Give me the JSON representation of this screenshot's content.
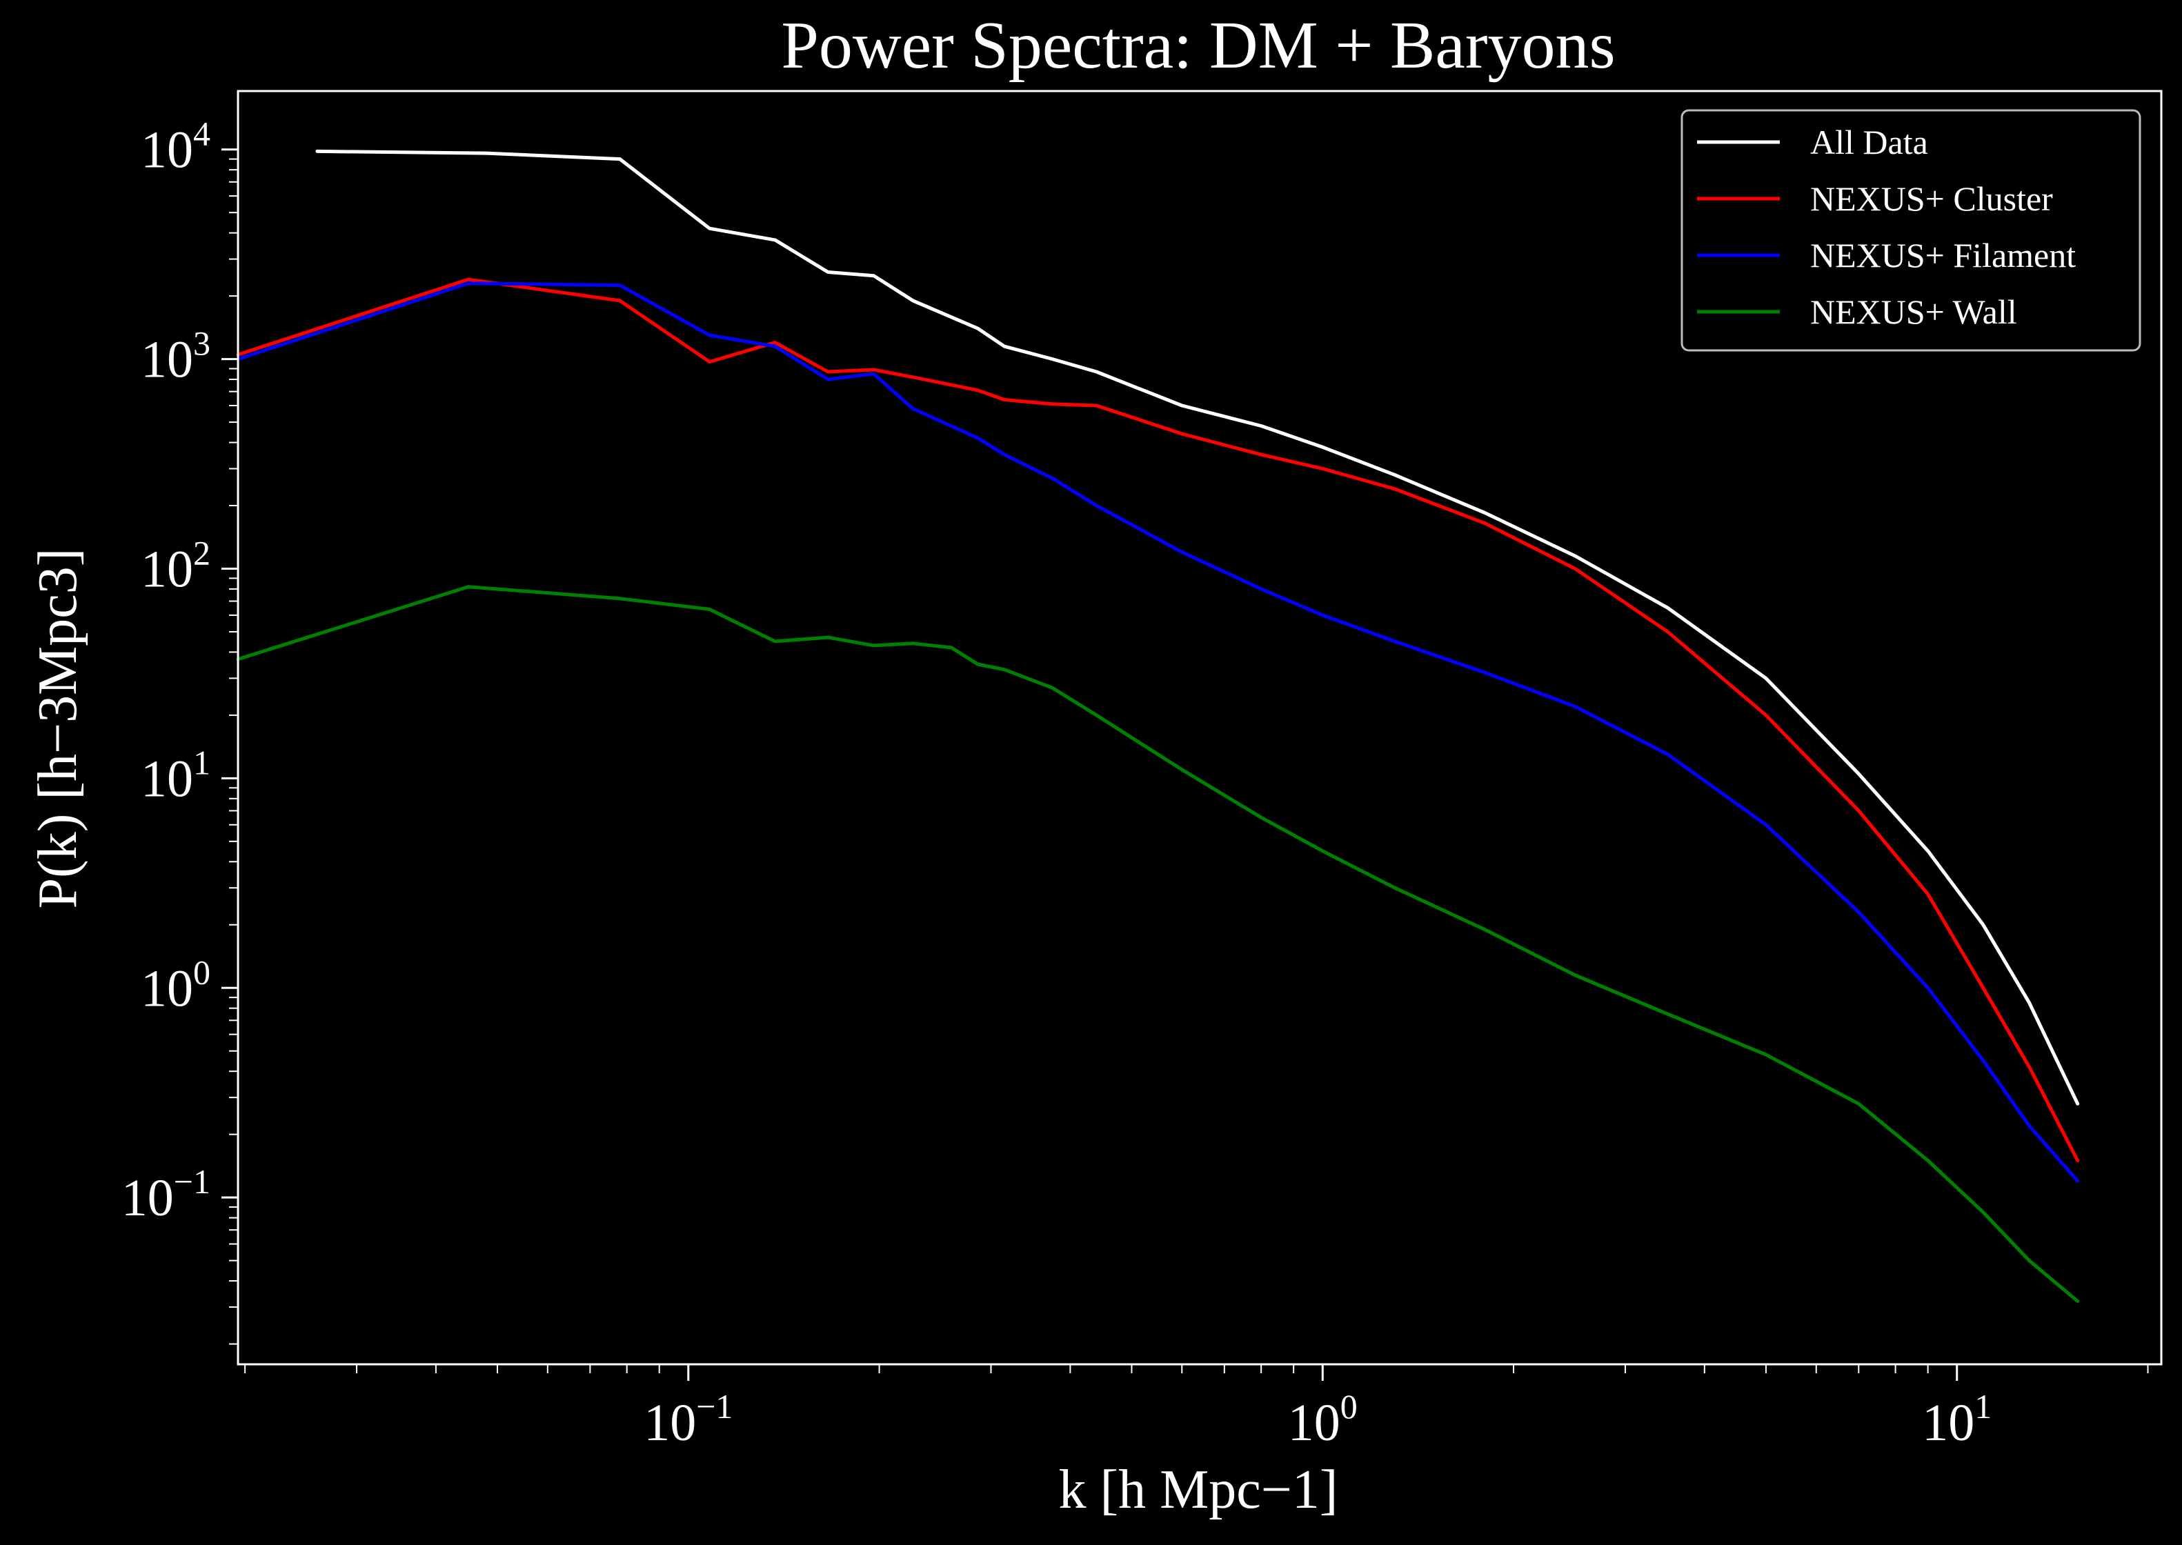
{
  "chart_data": {
    "type": "line",
    "title": "Power Spectra: DM + Baryons",
    "xlabel": "k [h Mpc−1]",
    "ylabel": "P(k) [h−3Mpc3]",
    "xscale": "log",
    "yscale": "log",
    "xlim": [
      0.0195,
      21
    ],
    "ylim": [
      0.016,
      19000
    ],
    "grid": false,
    "legend_position": "top-right",
    "x_ticks": [
      {
        "value": 0.1,
        "label": "10",
        "exp": "−1"
      },
      {
        "value": 1,
        "label": "10",
        "exp": "0"
      },
      {
        "value": 10,
        "label": "10",
        "exp": "1"
      }
    ],
    "y_ticks": [
      {
        "value": 0.1,
        "label": "10",
        "exp": "−1"
      },
      {
        "value": 1,
        "label": "10",
        "exp": "0"
      },
      {
        "value": 10,
        "label": "10",
        "exp": "1"
      },
      {
        "value": 100,
        "label": "10",
        "exp": "2"
      },
      {
        "value": 1000,
        "label": "10",
        "exp": "3"
      },
      {
        "value": 10000,
        "label": "10",
        "exp": "4"
      }
    ],
    "series": [
      {
        "name": "All Data",
        "color": "#ffffff",
        "x": [
          0.026,
          0.048,
          0.078,
          0.108,
          0.137,
          0.166,
          0.196,
          0.226,
          0.286,
          0.315,
          0.375,
          0.44,
          0.6,
          0.8,
          1.0,
          1.3,
          1.8,
          2.5,
          3.5,
          5.0,
          7.0,
          9.0,
          11.0,
          13.0,
          15.5
        ],
        "y": [
          9800,
          9600,
          9000,
          4200,
          3700,
          2600,
          2500,
          1900,
          1400,
          1150,
          1000,
          870,
          600,
          480,
          380,
          280,
          185,
          115,
          65,
          30,
          10.5,
          4.5,
          2.0,
          0.85,
          0.28
        ]
      },
      {
        "name": "NEXUS+ Cluster",
        "color": "#ff0000",
        "x": [
          0.0195,
          0.045,
          0.078,
          0.108,
          0.137,
          0.166,
          0.196,
          0.226,
          0.286,
          0.315,
          0.375,
          0.44,
          0.6,
          0.8,
          1.0,
          1.3,
          1.8,
          2.5,
          3.5,
          5.0,
          7.0,
          9.0,
          11.0,
          13.0,
          15.5
        ],
        "y": [
          1050,
          2400,
          1900,
          970,
          1200,
          870,
          890,
          820,
          710,
          640,
          610,
          600,
          440,
          350,
          300,
          240,
          165,
          100,
          50,
          20,
          7,
          2.8,
          1.0,
          0.42,
          0.15
        ]
      },
      {
        "name": "NEXUS+ Filament",
        "color": "#0000ff",
        "x": [
          0.0195,
          0.045,
          0.078,
          0.108,
          0.137,
          0.166,
          0.196,
          0.226,
          0.286,
          0.315,
          0.375,
          0.44,
          0.6,
          0.8,
          1.0,
          1.3,
          1.8,
          2.5,
          3.5,
          5.0,
          7.0,
          9.0,
          11.0,
          13.0,
          15.5
        ],
        "y": [
          1000,
          2300,
          2250,
          1300,
          1150,
          800,
          850,
          580,
          420,
          350,
          270,
          200,
          120,
          80,
          60,
          45,
          32,
          22,
          13,
          6,
          2.3,
          1.0,
          0.45,
          0.22,
          0.12
        ]
      },
      {
        "name": "NEXUS+ Wall",
        "color": "#008000",
        "x": [
          0.0195,
          0.045,
          0.078,
          0.108,
          0.137,
          0.166,
          0.196,
          0.226,
          0.26,
          0.286,
          0.315,
          0.375,
          0.44,
          0.6,
          0.8,
          1.0,
          1.3,
          1.8,
          2.5,
          3.5,
          5.0,
          7.0,
          9.0,
          11.0,
          13.0,
          15.5
        ],
        "y": [
          37,
          82,
          72,
          64,
          45,
          47,
          43,
          44,
          42,
          35,
          33,
          27,
          20,
          11,
          6.5,
          4.5,
          3.0,
          1.9,
          1.15,
          0.75,
          0.48,
          0.28,
          0.15,
          0.085,
          0.05,
          0.032
        ]
      }
    ]
  }
}
